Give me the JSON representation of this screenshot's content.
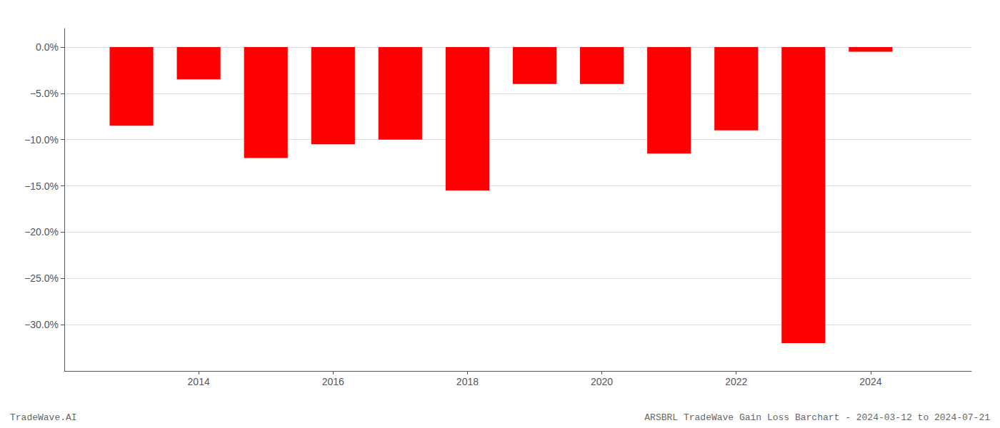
{
  "chart_data": {
    "type": "bar",
    "x": [
      2013,
      2014,
      2015,
      2016,
      2017,
      2018,
      2019,
      2020,
      2021,
      2022,
      2023,
      2024
    ],
    "values": [
      -8.5,
      -3.5,
      -12.0,
      -10.5,
      -10.0,
      -15.5,
      -4.0,
      -4.0,
      -11.5,
      -9.0,
      -32.0,
      -0.5
    ],
    "color": "#ff0000",
    "xlim": [
      2012.0,
      2025.5
    ],
    "xticks": [
      2014,
      2016,
      2018,
      2020,
      2022,
      2024
    ],
    "ylim": [
      -35,
      2.0
    ],
    "yticks": [
      {
        "value": 0.0,
        "label": "0.0%"
      },
      {
        "value": -5.0,
        "label": "−5.0%"
      },
      {
        "value": -10.0,
        "label": "−10.0%"
      },
      {
        "value": -15.0,
        "label": "−15.0%"
      },
      {
        "value": -20.0,
        "label": "−20.0%"
      },
      {
        "value": -25.0,
        "label": "−25.0%"
      },
      {
        "value": -30.0,
        "label": "−30.0%"
      }
    ],
    "grid": true,
    "annotations": [
      "TradeWave.AI",
      "ARSBRL TradeWave Gain Loss Barchart - 2024-03-12 to 2024-07-21"
    ]
  }
}
